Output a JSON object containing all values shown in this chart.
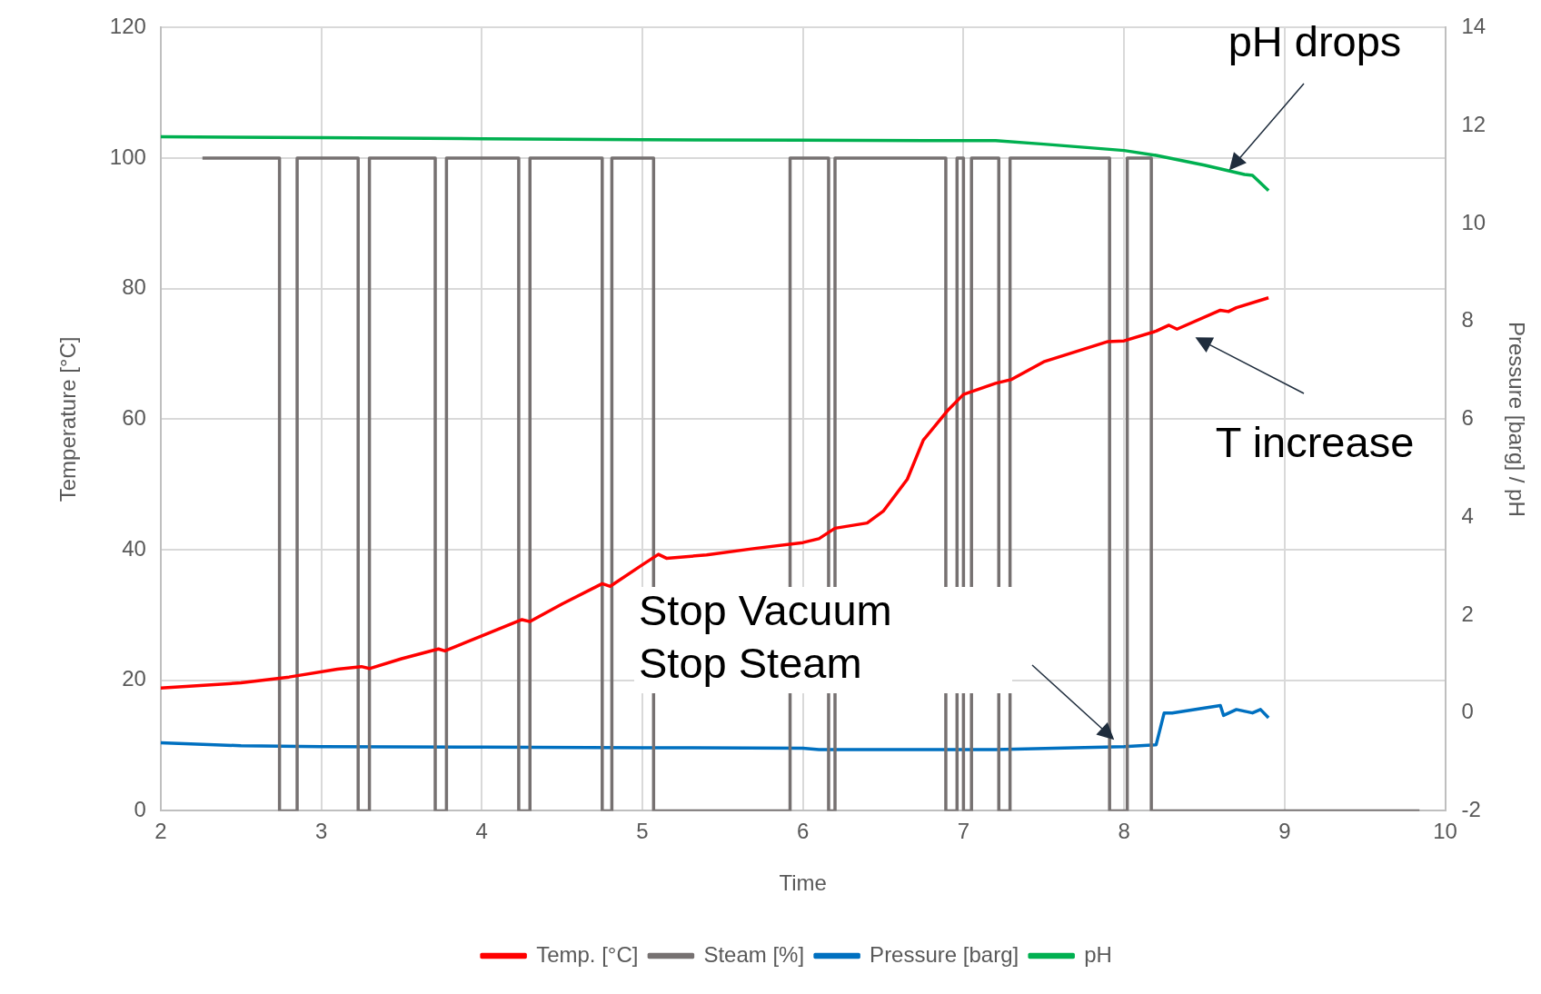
{
  "chart_data": {
    "type": "line",
    "xlabel": "Time",
    "ylabel": "Temperature [°C]",
    "y2label": "Pressure [barg] / pH",
    "xlim": [
      2,
      10
    ],
    "xticks": [
      2,
      3,
      4,
      5,
      6,
      7,
      8,
      9,
      10
    ],
    "ylim": [
      0,
      120
    ],
    "yticks": [
      0,
      20,
      40,
      60,
      80,
      100,
      120
    ],
    "y2lim": [
      -2,
      14
    ],
    "y2ticks": [
      -2,
      0,
      2,
      4,
      6,
      8,
      10,
      12,
      14
    ],
    "grid": true,
    "legend": "bottom",
    "marker": "none",
    "line_style": "solid",
    "series": [
      {
        "name": "Temp. [°C]",
        "color": "#ff0000",
        "x": [
          2,
          2.5,
          2.8,
          3.1,
          3.25,
          3.3,
          3.5,
          3.73,
          3.77,
          4,
          4.25,
          4.3,
          4.5,
          4.75,
          4.8,
          5,
          5.1,
          5.15,
          5.4,
          5.7,
          6,
          6.1,
          6.2,
          6.4,
          6.5,
          6.65,
          6.75,
          6.9,
          7,
          7.2,
          7.3,
          7.5,
          7.9,
          8,
          8.2,
          8.28,
          8.33,
          8.6,
          8.65,
          8.7,
          8.9
        ],
        "values": [
          18.8,
          19.6,
          20.5,
          21.7,
          22.1,
          21.8,
          23.3,
          24.8,
          24.5,
          26.8,
          29.3,
          29,
          31.7,
          34.8,
          34.4,
          37.7,
          39.3,
          38.7,
          39.2,
          40.2,
          41.1,
          41.7,
          43.3,
          44.1,
          45.9,
          50.8,
          56.8,
          61.3,
          63.8,
          65.5,
          66.1,
          68.8,
          71.9,
          72,
          73.5,
          74.4,
          73.8,
          76.7,
          76.5,
          77.1,
          78.6
        ]
      },
      {
        "name": "Steam [%]",
        "color": "#767171",
        "x": [
          2.26,
          2.74,
          2.74,
          2.85,
          2.85,
          3.23,
          3.23,
          3.3,
          3.3,
          3.71,
          3.71,
          3.78,
          3.78,
          4.23,
          4.23,
          4.3,
          4.3,
          4.75,
          4.75,
          4.81,
          4.81,
          5.07,
          5.07,
          5.92,
          5.92,
          6.16,
          6.16,
          6.2,
          6.2,
          6.89,
          6.89,
          6.96,
          6.96,
          7,
          7,
          7.05,
          7.05,
          7.22,
          7.22,
          7.29,
          7.29,
          7.91,
          7.91,
          8.02,
          8.02,
          8.17,
          8.17,
          9.84
        ],
        "values": [
          100,
          100,
          0,
          0,
          100,
          100,
          0,
          0,
          100,
          100,
          0,
          0,
          100,
          100,
          0,
          0,
          100,
          100,
          0,
          0,
          100,
          100,
          0,
          0,
          100,
          100,
          0,
          0,
          100,
          100,
          0,
          0,
          100,
          100,
          0,
          0,
          100,
          100,
          0,
          0,
          100,
          100,
          0,
          0,
          100,
          100,
          0,
          0
        ]
      },
      {
        "name": "Pressure [barg]",
        "color": "#0070c0",
        "axis": "y2",
        "x": [
          2,
          2.5,
          3,
          4,
          5,
          6,
          6.1,
          7.2,
          8,
          8.2,
          8.25,
          8.3,
          8.6,
          8.62,
          8.7,
          8.8,
          8.85,
          8.9
        ],
        "values": [
          -0.61,
          -0.67,
          -0.69,
          -0.7,
          -0.71,
          -0.72,
          -0.75,
          -0.75,
          -0.69,
          -0.65,
          0,
          0,
          0.15,
          -0.05,
          0.07,
          0,
          0.07,
          -0.1
        ]
      },
      {
        "name": "pH",
        "color": "#00b050",
        "axis": "y2",
        "x": [
          2,
          3,
          4,
          5,
          6,
          7,
          7.2,
          7.5,
          8,
          8.2,
          8.5,
          8.75,
          8.8,
          8.9
        ],
        "values": [
          11.77,
          11.75,
          11.73,
          11.71,
          11.7,
          11.69,
          11.69,
          11.62,
          11.49,
          11.39,
          11.19,
          11,
          10.98,
          10.67
        ]
      }
    ],
    "annotations": [
      "pH drops",
      "T increase",
      "Stop Vacuum\nStop Steam"
    ]
  }
}
